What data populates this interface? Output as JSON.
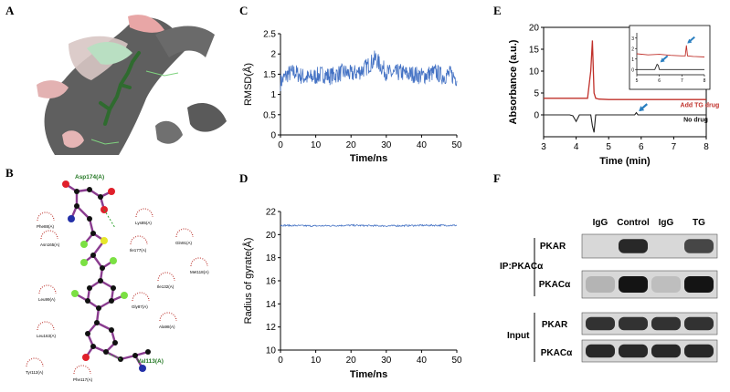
{
  "labels": {
    "a": "A",
    "b": "B",
    "c": "C",
    "d": "D",
    "e": "E",
    "f": "F"
  },
  "panel_b": {
    "residues": [
      "Asp174(A)",
      "Phe88(A)",
      "Lys85(A)",
      "Gln91(A)",
      "Asn165(A)",
      "Ile177(A)",
      "Met118(A)",
      "Ile132(A)",
      "Leu99(A)",
      "Gly87(A)",
      "Ala98(A)",
      "Leu163(A)",
      "Val113(A)",
      "Tyr112(A)",
      "Phe117(A)"
    ],
    "atom_colors": {
      "carbon": "#111111",
      "oxygen": "#e0202b",
      "nitrogen": "#2330a8",
      "sulfur": "#e6e62a",
      "fluorine": "#7be043",
      "bond": "#8a3c8f",
      "hbond": "#33a533",
      "hydrophobic": "#c0403a"
    }
  },
  "chart_data": [
    {
      "id": "C",
      "type": "line",
      "title": "",
      "xlabel": "Time/ns",
      "ylabel": "RMSD(Å)",
      "xlim": [
        0,
        50
      ],
      "ylim": [
        0,
        2.5
      ],
      "xticks": [
        "0",
        "10",
        "20",
        "30",
        "40",
        "50"
      ],
      "yticks": [
        "0",
        "0.5",
        "1",
        "1.5",
        "2",
        "2.5"
      ],
      "series": [
        {
          "name": "RMSD",
          "color": "#4472c4",
          "x": [
            0,
            2,
            4,
            6,
            8,
            10,
            12,
            14,
            16,
            18,
            20,
            22,
            24,
            26,
            27,
            28,
            30,
            32,
            34,
            36,
            38,
            40,
            42,
            44,
            46,
            48,
            50
          ],
          "y": [
            1.3,
            1.5,
            1.55,
            1.45,
            1.4,
            1.45,
            1.5,
            1.45,
            1.5,
            1.55,
            1.5,
            1.55,
            1.65,
            1.8,
            1.9,
            1.75,
            1.55,
            1.5,
            1.55,
            1.5,
            1.5,
            1.45,
            1.5,
            1.55,
            1.45,
            1.5,
            1.4
          ],
          "noise": 0.22
        }
      ]
    },
    {
      "id": "D",
      "type": "line",
      "title": "",
      "xlabel": "Time/ns",
      "ylabel": "Radius of gyrate(Å)",
      "xlim": [
        0,
        50
      ],
      "ylim": [
        10,
        22
      ],
      "xticks": [
        "0",
        "10",
        "20",
        "30",
        "40",
        "50"
      ],
      "yticks": [
        "10",
        "12",
        "14",
        "16",
        "18",
        "20",
        "22"
      ],
      "series": [
        {
          "name": "Rg",
          "color": "#4472c4",
          "x": [
            0,
            10,
            20,
            30,
            40,
            50
          ],
          "y": [
            20.8,
            20.75,
            20.8,
            20.75,
            20.8,
            20.8
          ],
          "noise": 0.07
        }
      ]
    },
    {
      "id": "E",
      "type": "line",
      "title": "",
      "xlabel": "Time (min)",
      "ylabel": "Absorbance (a.u.)",
      "xlim": [
        3,
        8
      ],
      "ylim": [
        -5,
        20
      ],
      "xticks": [
        "3",
        "4",
        "5",
        "6",
        "7",
        "8"
      ],
      "yticks": [
        "0",
        "5",
        "10",
        "15",
        "20"
      ],
      "series": [
        {
          "name": "Add TG drug",
          "color": "#c0302a",
          "x": [
            3,
            4,
            4.35,
            4.45,
            4.5,
            4.55,
            4.6,
            4.7,
            5,
            6,
            7,
            7.5,
            8
          ],
          "y": [
            3.8,
            3.8,
            3.8,
            10,
            17,
            5,
            3.8,
            3.6,
            3.5,
            3.5,
            3.5,
            3.5,
            3.5
          ]
        },
        {
          "name": "No drug",
          "color": "#222222",
          "x": [
            3,
            3.8,
            3.9,
            4.0,
            4.1,
            4.45,
            4.5,
            4.55,
            4.6,
            4.7,
            5,
            5.8,
            5.85,
            5.9,
            6,
            7,
            8
          ],
          "y": [
            0,
            0,
            -0.2,
            -1.5,
            0,
            0,
            -2.5,
            -4,
            0,
            0,
            0,
            0,
            0.5,
            0,
            0,
            0,
            0
          ]
        }
      ],
      "inset": {
        "xlim": [
          5,
          8
        ],
        "ylim": [
          -0.5,
          3.5
        ],
        "xticks": [
          "5",
          "6",
          "7",
          "8"
        ],
        "yticks": [
          "0",
          "1",
          "2",
          "3"
        ],
        "series": [
          {
            "name": "Add TG drug",
            "color": "#c0302a",
            "x": [
              5,
              5.5,
              6,
              6.5,
              7,
              7.15,
              7.2,
              7.25,
              7.5,
              8
            ],
            "y": [
              1.5,
              1.4,
              1.45,
              1.35,
              1.3,
              1.3,
              2.3,
              1.3,
              1.25,
              1.2
            ]
          },
          {
            "name": "No drug",
            "color": "#222222",
            "x": [
              5,
              5.8,
              5.9,
              5.95,
              6.0,
              6.2,
              6.5,
              7,
              7.5,
              8
            ],
            "y": [
              0,
              0,
              0.5,
              0.4,
              0,
              0,
              0,
              0,
              0,
              0
            ]
          }
        ]
      },
      "legend": [
        "Add TG drug",
        "No drug"
      ]
    }
  ],
  "panel_f": {
    "lane_labels": [
      "IgG",
      "Control",
      "IgG",
      "TG"
    ],
    "group_labels": [
      "IP:PKACα",
      "Input"
    ],
    "row_labels": [
      "PKAR",
      "PKACα",
      "PKAR",
      "PKACα"
    ],
    "band_intensity": [
      [
        0.0,
        0.85,
        0.0,
        0.7
      ],
      [
        0.15,
        0.95,
        0.1,
        0.95
      ],
      [
        0.8,
        0.8,
        0.8,
        0.8
      ],
      [
        0.85,
        0.85,
        0.85,
        0.85
      ]
    ]
  }
}
